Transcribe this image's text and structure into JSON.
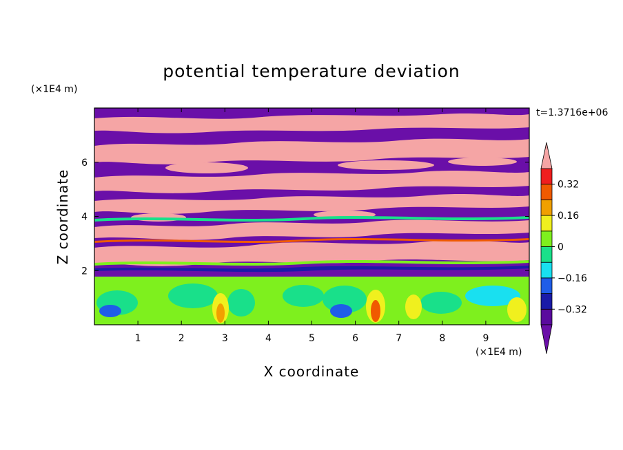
{
  "chart_data": {
    "type": "heatmap",
    "title": "potential temperature deviation",
    "xlabel": "X coordinate",
    "ylabel": "Z coordinate",
    "x_unit": "(×1E4 m)",
    "y_unit": "(×1E4 m)",
    "time_label": "t=1.3716e+06",
    "xlim": [
      0,
      10
    ],
    "ylim": [
      0,
      8
    ],
    "x_ticks": [
      1,
      2,
      3,
      4,
      5,
      6,
      7,
      8,
      9
    ],
    "y_ticks": [
      2,
      4,
      6
    ],
    "colorbar": {
      "levels": [
        -0.4,
        -0.32,
        -0.24,
        -0.16,
        -0.08,
        0,
        0.08,
        0.16,
        0.24,
        0.32,
        0.4
      ],
      "labels": [
        "0.32",
        "0.16",
        "0",
        "−0.16",
        "−0.32"
      ],
      "label_values": [
        0.32,
        0.16,
        0,
        -0.16,
        -0.32
      ],
      "colors_low_to_high": [
        "#5a0a9e",
        "#1a1aa8",
        "#1f5de8",
        "#19e0f0",
        "#19e08a",
        "#7ef01e",
        "#f0f01e",
        "#f0a000",
        "#f05a00",
        "#f01e1e",
        "#f5a5a5"
      ],
      "under_color": "#6a0fa8",
      "over_color": "#f5a5a5"
    }
  }
}
